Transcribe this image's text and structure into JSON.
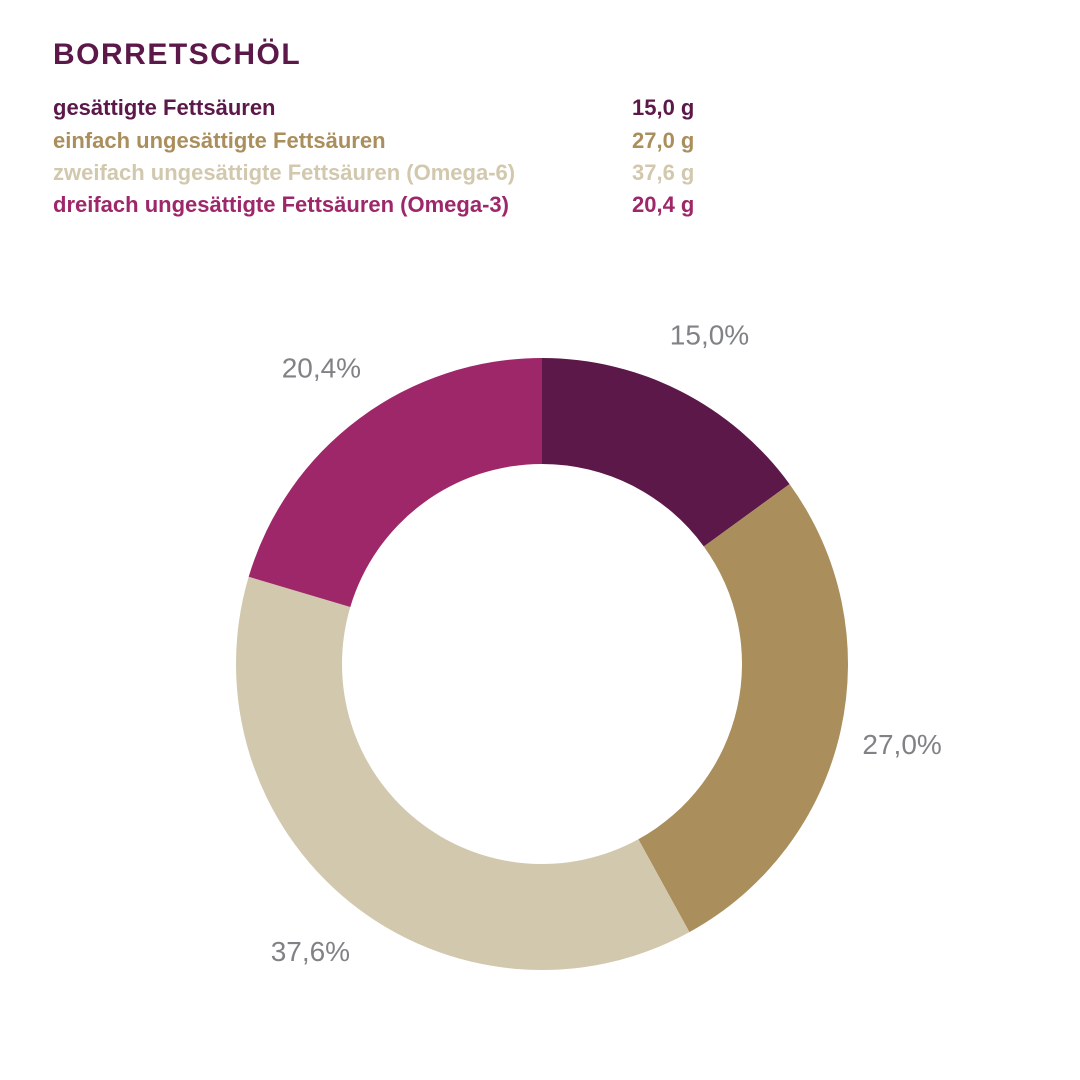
{
  "title": "BORRETSCHÖL",
  "theme": {
    "background": "#ffffff",
    "title_color": "#5c1849",
    "percent_label_color": "#808285"
  },
  "legend": {
    "rows": [
      {
        "label": "gesättigte Fettsäuren",
        "value": "15,0 g",
        "color": "#5c1849"
      },
      {
        "label": "einfach ungesättigte Fettsäuren",
        "value": "27,0 g",
        "color": "#aa8e5c"
      },
      {
        "label": "zweifach ungesättigte Fettsäuren (Omega-6)",
        "value": "37,6 g",
        "color": "#d2c8ae"
      },
      {
        "label": "dreifach ungesättigte Fettsäuren (Omega-3)",
        "value": "20,4 g",
        "color": "#9d2768"
      }
    ]
  },
  "chart_data": {
    "type": "pie",
    "subtype": "donut",
    "title": "BORRETSCHÖL",
    "categories": [
      "gesättigte Fettsäuren",
      "einfach ungesättigte Fettsäuren",
      "zweifach ungesättigte Fettsäuren (Omega-6)",
      "dreifach ungesättigte Fettsäuren (Omega-3)"
    ],
    "values": [
      15.0,
      27.0,
      37.6,
      20.4
    ],
    "unit": "g",
    "total": 100.0,
    "value_labels": [
      "15,0 g",
      "27,0 g",
      "37,6 g",
      "20,4 g"
    ],
    "percent_labels": [
      "15,0%",
      "27,0%",
      "37,6%",
      "20,4%"
    ],
    "colors": [
      "#5c1849",
      "#aa8e5c",
      "#d2c8ae",
      "#9d2768"
    ],
    "percent_label_color": "#808285",
    "start_angle_deg": 0,
    "direction": "clockwise",
    "legend_position": "top-left",
    "donut_hole_ratio": 0.654
  }
}
